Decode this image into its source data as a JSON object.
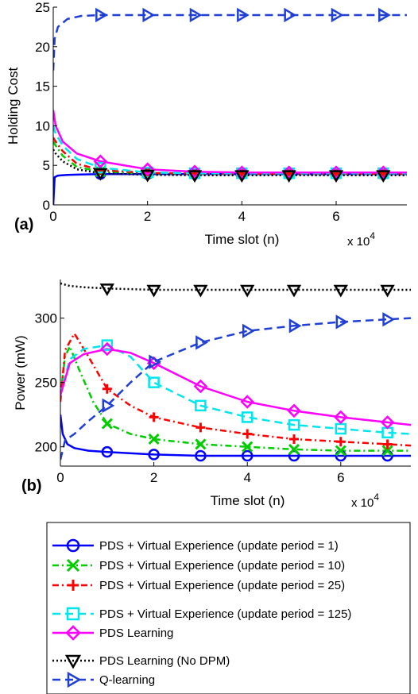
{
  "chart_data": [
    {
      "type": "line",
      "panel_label": "(a)",
      "xlabel": "Time slot (n)",
      "ylabel": "Holding Cost",
      "x_multiplier_label": "x 10",
      "x_multiplier_exponent": "4",
      "xlim": [
        0,
        7.5
      ],
      "ylim": [
        0,
        25
      ],
      "xticks": [
        0,
        2,
        4,
        6
      ],
      "yticks": [
        0,
        5,
        10,
        15,
        20,
        25
      ],
      "grid": false,
      "series": [
        {
          "name": "PDS + Virtual Experience (update period = 1)",
          "color": "#0000ff",
          "marker": "circle",
          "linestyle": "solid",
          "x": [
            0,
            0.03,
            0.1,
            0.3,
            0.6,
            1,
            2,
            3,
            4,
            5,
            6,
            7,
            7.5
          ],
          "y": [
            0,
            3.5,
            3.7,
            3.8,
            3.85,
            3.9,
            3.9,
            3.9,
            3.9,
            3.9,
            3.9,
            3.9,
            3.9
          ]
        },
        {
          "name": "PDS + Virtual Experience (update period = 10)",
          "color": "#00cc00",
          "marker": "x",
          "linestyle": "dashdot",
          "x": [
            0,
            0.05,
            0.2,
            0.5,
            1,
            2,
            3,
            4,
            5,
            6,
            7,
            7.5
          ],
          "y": [
            8.0,
            7.5,
            6.2,
            4.8,
            4.2,
            4.0,
            3.95,
            3.95,
            3.95,
            3.95,
            3.95,
            3.95
          ]
        },
        {
          "name": "PDS + Virtual Experience (update period = 25)",
          "color": "#ff0000",
          "marker": "plus",
          "linestyle": "dashdot",
          "x": [
            0,
            0.05,
            0.2,
            0.5,
            1,
            2,
            3,
            4,
            5,
            6,
            7,
            7.5
          ],
          "y": [
            8.5,
            8.0,
            6.8,
            5.2,
            4.4,
            4.05,
            3.95,
            3.95,
            3.95,
            3.95,
            3.95,
            3.95
          ]
        },
        {
          "name": "PDS + Virtual Experience (update period = 125)",
          "color": "#00e5ee",
          "marker": "square",
          "linestyle": "dashed",
          "x": [
            0,
            0.05,
            0.2,
            0.5,
            1,
            2,
            3,
            4,
            5,
            6,
            7,
            7.5
          ],
          "y": [
            10.0,
            9.0,
            7.5,
            5.8,
            4.7,
            4.1,
            4.0,
            4.0,
            4.0,
            4.0,
            4.0,
            4.0
          ]
        },
        {
          "name": "PDS Learning",
          "color": "#ff00ff",
          "marker": "diamond",
          "linestyle": "solid",
          "x": [
            0,
            0.05,
            0.2,
            0.5,
            1,
            2,
            3,
            4,
            5,
            6,
            7,
            7.5
          ],
          "y": [
            12.0,
            10.0,
            8.0,
            6.5,
            5.5,
            4.5,
            4.2,
            4.1,
            4.1,
            4.1,
            4.1,
            4.1
          ]
        },
        {
          "name": "PDS Learning (No DPM)",
          "color": "#000000",
          "marker": "triangle-down",
          "linestyle": "dotted",
          "x": [
            0,
            0.05,
            0.2,
            0.5,
            1,
            2,
            3,
            4,
            5,
            6,
            7,
            7.5
          ],
          "y": [
            7.0,
            6.5,
            5.5,
            4.5,
            4.0,
            3.8,
            3.75,
            3.75,
            3.75,
            3.75,
            3.75,
            3.75
          ]
        },
        {
          "name": "Q-learning",
          "color": "#1f3fd6",
          "marker": "triangle-right",
          "linestyle": "dashed",
          "x": [
            0,
            0.03,
            0.1,
            0.3,
            0.6,
            1,
            2,
            3,
            4,
            5,
            6,
            7,
            7.5
          ],
          "y": [
            17.0,
            21.0,
            22.5,
            23.5,
            23.9,
            24.0,
            24.0,
            24.0,
            24.0,
            24.0,
            24.0,
            24.0,
            24.0
          ]
        }
      ]
    },
    {
      "type": "line",
      "panel_label": "(b)",
      "xlabel": "Time slot (n)",
      "ylabel": "Power (mW)",
      "x_multiplier_label": "x 10",
      "x_multiplier_exponent": "4",
      "xlim": [
        0,
        7.5
      ],
      "ylim": [
        185,
        330
      ],
      "xticks": [
        0,
        2,
        4,
        6
      ],
      "yticks": [
        200,
        250,
        300
      ],
      "grid": false,
      "series": [
        {
          "name": "PDS + Virtual Experience (update period = 1)",
          "color": "#0000ff",
          "marker": "circle",
          "linestyle": "solid",
          "x": [
            0,
            0.05,
            0.15,
            0.3,
            0.6,
            1,
            2,
            3,
            4,
            5,
            6,
            7,
            7.5
          ],
          "y": [
            225,
            210,
            202,
            199,
            197,
            196,
            194,
            193,
            193,
            193,
            193,
            193,
            193
          ]
        },
        {
          "name": "PDS + Virtual Experience (update period = 10)",
          "color": "#00cc00",
          "marker": "x",
          "linestyle": "dashdot",
          "x": [
            0,
            0.1,
            0.2,
            0.4,
            0.7,
            1,
            1.5,
            2,
            3,
            4,
            5,
            6,
            7,
            7.5
          ],
          "y": [
            240,
            270,
            278,
            260,
            235,
            218,
            210,
            206,
            202,
            200,
            198,
            197,
            197,
            197
          ]
        },
        {
          "name": "PDS + Virtual Experience (update period = 25)",
          "color": "#ff0000",
          "marker": "plus",
          "linestyle": "dashdot",
          "x": [
            0,
            0.1,
            0.3,
            0.6,
            1,
            1.5,
            2,
            3,
            4,
            5,
            6,
            7,
            7.5
          ],
          "y": [
            235,
            275,
            288,
            270,
            245,
            232,
            223,
            215,
            210,
            206,
            204,
            202,
            201
          ]
        },
        {
          "name": "PDS + Virtual Experience (update period = 125)",
          "color": "#00e5ee",
          "marker": "square",
          "linestyle": "dashed",
          "x": [
            0,
            0.2,
            0.5,
            1,
            1.5,
            2,
            3,
            4,
            5,
            6,
            7,
            7.5
          ],
          "y": [
            240,
            268,
            276,
            279,
            270,
            250,
            232,
            223,
            217,
            214,
            211,
            210
          ]
        },
        {
          "name": "PDS Learning",
          "color": "#ff00ff",
          "marker": "diamond",
          "linestyle": "solid",
          "x": [
            0,
            0.2,
            0.5,
            1,
            1.5,
            2,
            3,
            4,
            5,
            6,
            7,
            7.5
          ],
          "y": [
            240,
            265,
            272,
            276,
            273,
            265,
            247,
            235,
            228,
            223,
            219,
            217
          ]
        },
        {
          "name": "PDS Learning (No DPM)",
          "color": "#000000",
          "marker": "triangle-down",
          "linestyle": "dotted",
          "x": [
            0,
            0.2,
            0.5,
            1,
            2,
            3,
            4,
            5,
            6,
            7,
            7.5
          ],
          "y": [
            327,
            325,
            324,
            323,
            322,
            322,
            322,
            322,
            322,
            322,
            322
          ]
        },
        {
          "name": "Q-learning",
          "color": "#1f3fd6",
          "marker": "triangle-right",
          "linestyle": "dashed",
          "x": [
            0,
            0.1,
            0.3,
            0.6,
            1,
            1.5,
            2,
            3,
            4,
            5,
            6,
            7,
            7.5
          ],
          "y": [
            190,
            205,
            210,
            220,
            232,
            250,
            266,
            281,
            290,
            294,
            297,
            299,
            300
          ]
        }
      ]
    }
  ],
  "legend": {
    "placement": "bottom",
    "entries": [
      "PDS + Virtual Experience (update period = 1)",
      "PDS + Virtual Experience (update period = 10)",
      "PDS + Virtual Experience (update period = 25)",
      "PDS + Virtual Experience (update period = 125)",
      "PDS Learning",
      "PDS Learning (No DPM)",
      "Q-learning"
    ]
  }
}
